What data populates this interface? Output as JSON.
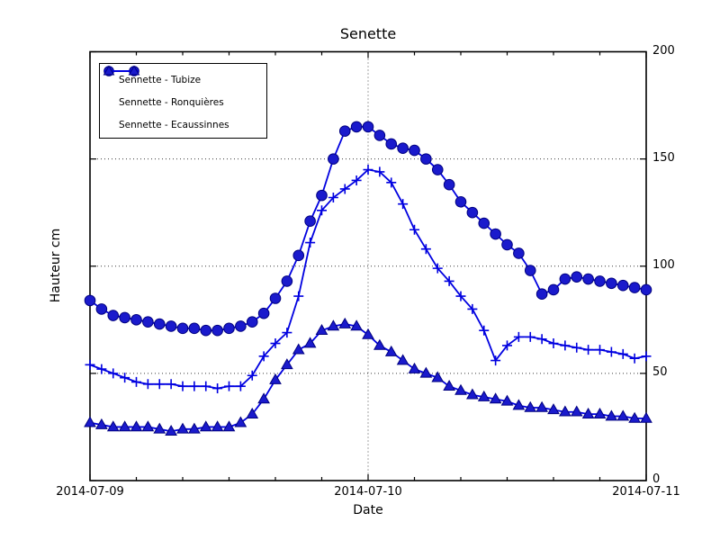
{
  "title": "Senette",
  "colors": {
    "line": "#0000e0",
    "marker_fill": "#1a1acc",
    "marker_edge": "#000080",
    "grid": "#3a3a3a",
    "axis": "#000000",
    "background": "#ffffff"
  },
  "legend": {
    "items": [
      {
        "label": "Sennette - Tubize",
        "marker": "circle"
      },
      {
        "label": "Sennette - Ronquières",
        "marker": "plus"
      },
      {
        "label": "Sennette - Ecaussinnes",
        "marker": "triangle"
      }
    ]
  },
  "chart_data": {
    "type": "line",
    "title": "Senette",
    "xlabel": "Date",
    "ylabel": "Hauteur cm",
    "ylim": [
      0,
      200
    ],
    "y_ticks": [
      0,
      50,
      100,
      150,
      200
    ],
    "y_tick_labels_top_down": [
      "200",
      "150",
      "100",
      "50",
      "0"
    ],
    "x_tick_labels": [
      "2014-07-09",
      "2014-07-10",
      "2014-07-11"
    ],
    "x_tick_positions_hours": [
      0,
      24,
      48
    ],
    "minor_x_tick_every_hours": 4,
    "grid": "dotted horizontal lines at 50/100/150 and dotted vertical line at 2014-07-10",
    "legend_position": "upper left",
    "x_unit": "hours since 2014-07-09 00:00",
    "x_hours": [
      0,
      1,
      2,
      3,
      4,
      5,
      6,
      7,
      8,
      9,
      10,
      11,
      12,
      13,
      14,
      15,
      16,
      17,
      18,
      19,
      20,
      21,
      22,
      23,
      24,
      25,
      26,
      27,
      28,
      29,
      30,
      31,
      32,
      33,
      34,
      35,
      36,
      37,
      38,
      39,
      40,
      41,
      42,
      43,
      44,
      45,
      46,
      47,
      48
    ],
    "series": [
      {
        "name": "Sennette - Tubize",
        "marker": "circle",
        "values": [
          84,
          80,
          77,
          76,
          75,
          74,
          73,
          72,
          71,
          71,
          70,
          70,
          71,
          72,
          74,
          78,
          85,
          93,
          105,
          121,
          133,
          150,
          163,
          165,
          165,
          161,
          157,
          155,
          154,
          150,
          145,
          138,
          130,
          125,
          120,
          115,
          110,
          106,
          98,
          87,
          89,
          94,
          95,
          94,
          93,
          92,
          91,
          90,
          89
        ]
      },
      {
        "name": "Sennette - Ronquières",
        "marker": "plus",
        "values": [
          54,
          52,
          50,
          48,
          46,
          45,
          45,
          45,
          44,
          44,
          44,
          43,
          44,
          44,
          49,
          58,
          64,
          69,
          86,
          111,
          126,
          132,
          136,
          140,
          145,
          144,
          139,
          129,
          117,
          108,
          99,
          93,
          86,
          80,
          70,
          56,
          63,
          67,
          67,
          66,
          64,
          63,
          62,
          61,
          61,
          60,
          59,
          57,
          58
        ]
      },
      {
        "name": "Sennette - Ecaussinnes",
        "marker": "triangle",
        "values": [
          27,
          26,
          25,
          25,
          25,
          25,
          24,
          23,
          24,
          24,
          25,
          25,
          25,
          27,
          31,
          38,
          47,
          54,
          61,
          64,
          70,
          72,
          73,
          72,
          68,
          63,
          60,
          56,
          52,
          50,
          48,
          44,
          42,
          40,
          39,
          38,
          37,
          35,
          34,
          34,
          33,
          32,
          32,
          31,
          31,
          30,
          30,
          29,
          29
        ]
      }
    ]
  }
}
